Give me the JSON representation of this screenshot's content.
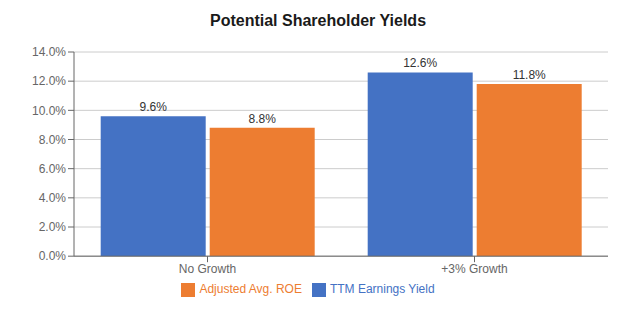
{
  "chart_data": {
    "type": "bar",
    "title": "Potential Shareholder Yields",
    "categories": [
      "No Growth",
      "+3% Growth"
    ],
    "series": [
      {
        "name": "TTM Earnings Yield",
        "color": "#4472C4",
        "values": [
          0.096,
          0.126
        ],
        "value_labels": [
          "9.6%",
          "12.6%"
        ]
      },
      {
        "name": "Adjusted Avg. ROE",
        "color": "#ED7D31",
        "values": [
          0.088,
          0.118
        ],
        "value_labels": [
          "8.8%",
          "11.8%"
        ]
      }
    ],
    "ylim": [
      0,
      0.14
    ],
    "yticks": [
      {
        "value": 0.0,
        "label": "0.0%"
      },
      {
        "value": 0.02,
        "label": "2.0%"
      },
      {
        "value": 0.04,
        "label": "4.0%"
      },
      {
        "value": 0.06,
        "label": "6.0%"
      },
      {
        "value": 0.08,
        "label": "8.0%"
      },
      {
        "value": 0.1,
        "label": "10.0%"
      },
      {
        "value": 0.12,
        "label": "12.0%"
      },
      {
        "value": 0.14,
        "label": "14.0%"
      }
    ],
    "grid": true,
    "legend": "bottom",
    "data_labels": true
  }
}
